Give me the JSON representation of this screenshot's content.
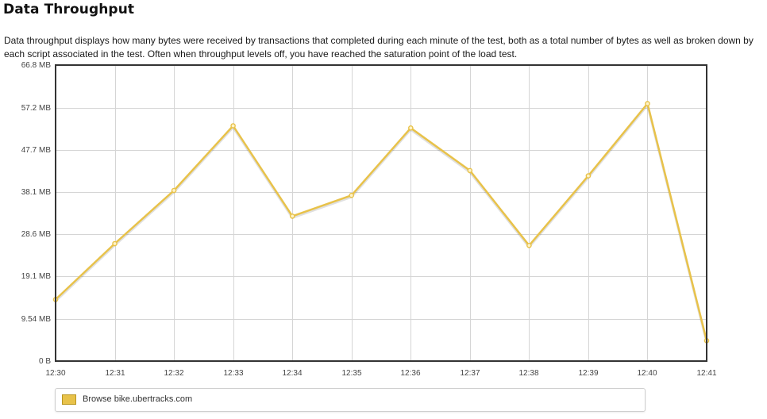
{
  "page": {
    "title": "Data Throughput",
    "description": "Data throughput displays how many bytes were received by transactions that completed during each minute of the test, both as a total number of bytes as well as broken down by each script associated in the test. Often when throughput levels off, you have reached the saturation point of the load test."
  },
  "colors": {
    "series": "#e8c24a",
    "series_point_fill": "#fff3c8",
    "grid": "#d5d5d5",
    "frame": "#333333"
  },
  "chart_data": {
    "type": "line",
    "title": "",
    "xlabel": "",
    "ylabel": "",
    "categories": [
      "12:30",
      "12:31",
      "12:32",
      "12:33",
      "12:34",
      "12:35",
      "12:36",
      "12:37",
      "12:38",
      "12:39",
      "12:40",
      "12:41"
    ],
    "y_ticks": [
      0,
      9.54,
      19.1,
      28.6,
      38.1,
      47.7,
      57.2,
      66.8
    ],
    "y_tick_labels": [
      "0 B",
      "9.54 MB",
      "19.1 MB",
      "28.6 MB",
      "38.1 MB",
      "47.7 MB",
      "57.2 MB",
      "66.8 MB"
    ],
    "ylim": [
      0,
      66.8
    ],
    "y_unit": "MB",
    "grid": true,
    "legend_position": "bottom-left",
    "series": [
      {
        "name": "Browse bike.ubertracks.com",
        "values": [
          13.9,
          26.5,
          38.5,
          53.1,
          32.7,
          37.4,
          52.6,
          43.0,
          26.1,
          41.8,
          58.1,
          4.6
        ]
      }
    ]
  }
}
